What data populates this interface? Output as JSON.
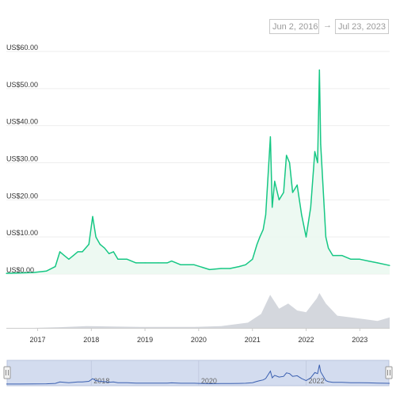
{
  "range_selector": {
    "from": "Jun 2, 2016",
    "to": "Jul 23, 2023",
    "arrow": "→"
  },
  "chart_data": {
    "type": "line",
    "ylim": [
      0,
      60
    ],
    "y_tick_labels": [
      "US$0.00",
      "US$10.00",
      "US$20.00",
      "US$30.00",
      "US$40.00",
      "US$50.00",
      "US$60.00"
    ],
    "y_tick_values": [
      0,
      10,
      20,
      30,
      40,
      50,
      60
    ],
    "x_tick_labels": [
      "2017",
      "2018",
      "2019",
      "2020",
      "2021",
      "2022",
      "2023"
    ],
    "x_range": [
      "2016-06-02",
      "2023-07-23"
    ],
    "navigator_labels": [
      "2018",
      "2020",
      "2022"
    ],
    "grid": true,
    "colors": {
      "line": "#16c784",
      "area": "#e8f7ef",
      "volume": "#c9cdd4",
      "navigator_fill": "#d3dcef",
      "navigator_line": "#3a5fb0"
    },
    "series": [
      {
        "x": [
          "2016-06-02",
          "2016-09-01",
          "2016-12-01",
          "2017-03-01",
          "2017-05-01",
          "2017-06-01",
          "2017-07-01",
          "2017-08-01",
          "2017-09-01",
          "2017-10-01",
          "2017-11-01",
          "2017-12-15",
          "2018-01-10",
          "2018-02-01",
          "2018-03-01",
          "2018-04-01",
          "2018-05-01",
          "2018-06-01",
          "2018-07-01",
          "2018-09-01",
          "2018-11-01",
          "2019-01-01",
          "2019-04-01",
          "2019-06-01",
          "2019-07-01",
          "2019-09-01",
          "2019-12-01",
          "2020-03-15",
          "2020-06-01",
          "2020-08-01",
          "2020-10-01",
          "2020-11-15",
          "2021-01-01",
          "2021-02-01",
          "2021-02-20",
          "2021-03-15",
          "2021-04-01",
          "2021-05-03",
          "2021-05-15",
          "2021-06-01",
          "2021-07-01",
          "2021-08-01",
          "2021-08-20",
          "2021-09-10",
          "2021-10-01",
          "2021-11-01",
          "2021-12-01",
          "2022-01-01",
          "2022-02-01",
          "2022-03-01",
          "2022-03-20",
          "2022-04-01",
          "2022-04-10",
          "2022-05-01",
          "2022-05-15",
          "2022-06-01",
          "2022-07-01",
          "2022-09-01",
          "2022-11-01",
          "2023-01-01",
          "2023-03-01",
          "2023-05-01",
          "2023-07-23"
        ],
        "values": [
          0.2,
          0.3,
          0.4,
          0.8,
          2,
          6,
          5,
          4,
          5,
          6,
          6,
          8,
          15.5,
          10,
          8,
          7,
          5.5,
          6,
          4,
          4,
          3,
          3,
          3,
          3,
          3.5,
          2.5,
          2.5,
          1.2,
          1.5,
          1.5,
          2,
          2.5,
          4,
          8,
          10,
          12,
          16,
          37,
          18,
          25,
          20,
          22,
          32,
          30,
          22,
          24,
          16,
          10,
          18,
          33,
          30,
          55,
          35,
          20,
          10,
          7,
          5,
          5,
          4,
          4,
          3.5,
          3,
          2.3
        ]
      }
    ],
    "volume": {
      "x": [
        "2016-06-02",
        "2016-12-01",
        "2017-06-01",
        "2017-12-01",
        "2018-06-01",
        "2018-12-01",
        "2019-06-01",
        "2019-12-01",
        "2020-06-01",
        "2020-12-01",
        "2021-03-01",
        "2021-05-01",
        "2021-07-01",
        "2021-09-01",
        "2021-11-01",
        "2022-01-01",
        "2022-03-15",
        "2022-04-01",
        "2022-05-15",
        "2022-08-01",
        "2022-11-01",
        "2023-02-01",
        "2023-05-01",
        "2023-07-23"
      ],
      "values": [
        0,
        0,
        0.02,
        0.05,
        0.04,
        0.03,
        0.03,
        0.03,
        0.05,
        0.15,
        0.4,
        0.95,
        0.55,
        0.7,
        0.5,
        0.45,
        0.85,
        1.0,
        0.7,
        0.35,
        0.3,
        0.25,
        0.2,
        0.3
      ]
    }
  }
}
